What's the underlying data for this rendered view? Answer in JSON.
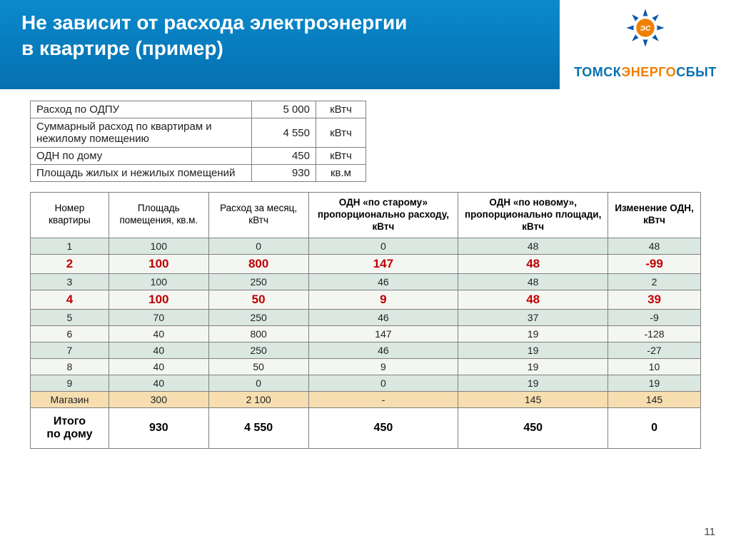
{
  "title_line1": "Не зависит от расхода электроэнергии",
  "title_line2": "в квартире   (пример)",
  "brand": {
    "part1": "ТОМСК",
    "part2": "ЭНЕРГО",
    "part3": "СБЫТ"
  },
  "logo_colors": {
    "outer": "#0a5aa8",
    "inner": "#f08000"
  },
  "summary": [
    {
      "label": "Расход по ОДПУ",
      "value": "5 000",
      "unit": "кВтч"
    },
    {
      "label": "Суммарный расход по квартирам и нежилому помещению",
      "value": "4 550",
      "unit": "кВтч"
    },
    {
      "label": "ОДН по дому",
      "value": "450",
      "unit": "кВтч"
    },
    {
      "label": "Площадь жилых и нежилых помещений",
      "value": "930",
      "unit": "кв.м"
    }
  ],
  "columns": [
    "Номер квартиры",
    "Площадь помещения, кв.м.",
    "Расход за месяц, кВтч",
    "ОДН «по старому» пропорционально расходу, кВтч",
    "ОДН «по новому», пропорционально площади, кВтч",
    "Изменение ОДН, кВтч"
  ],
  "col_bold": [
    false,
    false,
    false,
    true,
    true,
    true
  ],
  "rows": [
    {
      "cells": [
        "1",
        "100",
        "0",
        "0",
        "48",
        "48"
      ],
      "stripe": "even",
      "highlight": false
    },
    {
      "cells": [
        "2",
        "100",
        "800",
        "147",
        "48",
        "-99"
      ],
      "stripe": "odd",
      "highlight": true
    },
    {
      "cells": [
        "3",
        "100",
        "250",
        "46",
        "48",
        "2"
      ],
      "stripe": "even",
      "highlight": false
    },
    {
      "cells": [
        "4",
        "100",
        "50",
        "9",
        "48",
        "39"
      ],
      "stripe": "odd",
      "highlight": true
    },
    {
      "cells": [
        "5",
        "70",
        "250",
        "46",
        "37",
        "-9"
      ],
      "stripe": "even",
      "highlight": false
    },
    {
      "cells": [
        "6",
        "40",
        "800",
        "147",
        "19",
        "-128"
      ],
      "stripe": "odd",
      "highlight": false
    },
    {
      "cells": [
        "7",
        "40",
        "250",
        "46",
        "19",
        "-27"
      ],
      "stripe": "even",
      "highlight": false
    },
    {
      "cells": [
        "8",
        "40",
        "50",
        "9",
        "19",
        "10"
      ],
      "stripe": "odd",
      "highlight": false
    },
    {
      "cells": [
        "9",
        "40",
        "0",
        "0",
        "19",
        "19"
      ],
      "stripe": "even",
      "highlight": false
    },
    {
      "cells": [
        "Магазин",
        "300",
        "2 100",
        "-",
        "145",
        "145"
      ],
      "stripe": "shop",
      "highlight": false
    }
  ],
  "totals": {
    "label": "Итого по дому",
    "cells": [
      "930",
      "4 550",
      "450",
      "450",
      "0"
    ]
  },
  "page_number": "11",
  "col_widths": [
    "110",
    "140",
    "140",
    "210",
    "210",
    "130"
  ]
}
